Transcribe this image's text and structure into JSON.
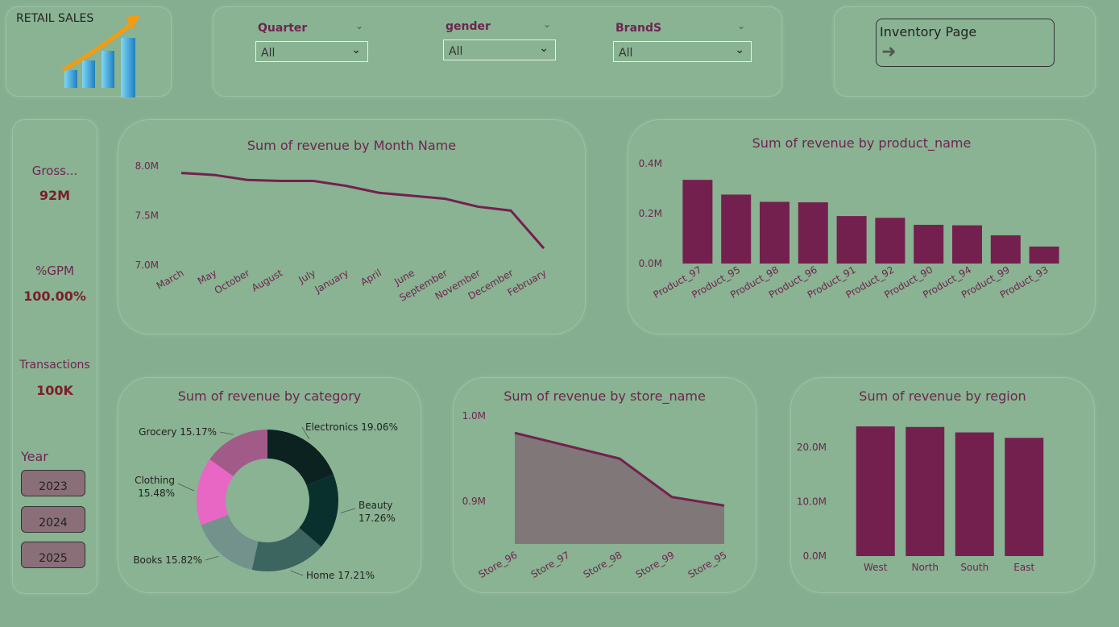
{
  "logo": {
    "title": "RETAIL SALES"
  },
  "filters": [
    {
      "label": "Quarter",
      "value": "All"
    },
    {
      "label": "gender",
      "value": "All"
    },
    {
      "label": "BrandS",
      "value": "All"
    }
  ],
  "nav": {
    "inventory_label": "Inventory Page"
  },
  "kpis": [
    {
      "label": "Gross...",
      "value": "92M"
    },
    {
      "label": "%GPM",
      "value": "100.00%"
    },
    {
      "label": "Transactions",
      "value": "100K"
    }
  ],
  "year_slicer": {
    "label": "Year",
    "options": [
      "2023",
      "2024",
      "2025"
    ]
  },
  "colors": {
    "accent": "#74204f",
    "bg": "#85ad8f",
    "card": "#89b392",
    "area": "#7f7778"
  },
  "chart_data": [
    {
      "id": "month",
      "type": "line",
      "title": "Sum of revenue by Month Name",
      "categories": [
        "March",
        "May",
        "October",
        "August",
        "July",
        "January",
        "April",
        "June",
        "September",
        "November",
        "December",
        "February"
      ],
      "values": [
        7.93,
        7.91,
        7.86,
        7.85,
        7.85,
        7.8,
        7.73,
        7.7,
        7.67,
        7.59,
        7.55,
        7.17
      ],
      "yticks": [
        "8.0M",
        "7.5M",
        "7.0M"
      ],
      "ylim": [
        7.0,
        8.0
      ]
    },
    {
      "id": "product",
      "type": "bar",
      "title": "Sum of revenue by product_name",
      "categories": [
        "Product_97",
        "Product_95",
        "Product_98",
        "Product_96",
        "Product_91",
        "Product_92",
        "Product_90",
        "Product_94",
        "Product_99",
        "Product_93"
      ],
      "values": [
        0.335,
        0.276,
        0.247,
        0.245,
        0.19,
        0.183,
        0.155,
        0.153,
        0.113,
        0.068
      ],
      "yticks": [
        "0.4M",
        "0.2M",
        "0.0M"
      ],
      "ylim": [
        0,
        0.4
      ]
    },
    {
      "id": "category",
      "type": "pie",
      "title": "Sum of revenue by category",
      "slices": [
        {
          "name": "Electronics",
          "pct": 19.06,
          "label": "Electronics 19.06%",
          "color": "#0b2220"
        },
        {
          "name": "Beauty",
          "pct": 17.26,
          "label": "Beauty 17.26%",
          "color": "#0a302d"
        },
        {
          "name": "Home",
          "pct": 17.21,
          "label": "Home 17.21%",
          "color": "#3c655f"
        },
        {
          "name": "Books",
          "pct": 15.82,
          "label": "Books 15.82%",
          "color": "#73928c"
        },
        {
          "name": "Clothing",
          "pct": 15.48,
          "label": "Clothing 15.48%",
          "color": "#e866c4"
        },
        {
          "name": "Grocery",
          "pct": 15.17,
          "label": "Grocery 15.17%",
          "color": "#a25a89"
        }
      ]
    },
    {
      "id": "store",
      "type": "area",
      "title": "Sum of revenue by store_name",
      "categories": [
        "Store_96",
        "Store_97",
        "Store_98",
        "Store_99",
        "Store_95"
      ],
      "values": [
        0.98,
        0.965,
        0.95,
        0.905,
        0.895
      ],
      "yticks": [
        "1.0M",
        "0.9M"
      ],
      "ylim": [
        0.85,
        1.0
      ]
    },
    {
      "id": "region",
      "type": "bar",
      "title": "Sum of revenue by region",
      "categories": [
        "West",
        "North",
        "South",
        "East"
      ],
      "values": [
        23.8,
        23.7,
        22.7,
        21.7
      ],
      "yticks": [
        "20.0M",
        "10.0M",
        "0.0M"
      ],
      "ylim": [
        0,
        25
      ]
    }
  ]
}
